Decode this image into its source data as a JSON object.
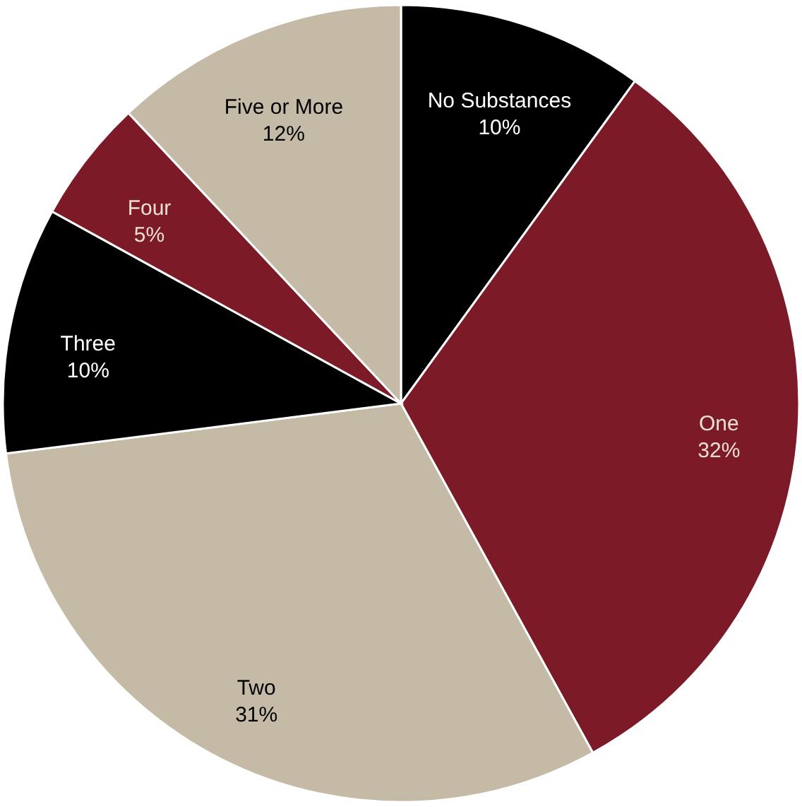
{
  "chart_data": {
    "type": "pie",
    "categories": [
      "No Substances",
      "One",
      "Two",
      "Three",
      "Four",
      "Five or More"
    ],
    "values": [
      10,
      32,
      31,
      10,
      5,
      12
    ],
    "colors": [
      "#000000",
      "#7d1a27",
      "#c4baa6",
      "#000000",
      "#7d1a27",
      "#c4baa6"
    ],
    "value_labels": [
      "10%",
      "32%",
      "31%",
      "10%",
      "5%",
      "12%"
    ]
  }
}
